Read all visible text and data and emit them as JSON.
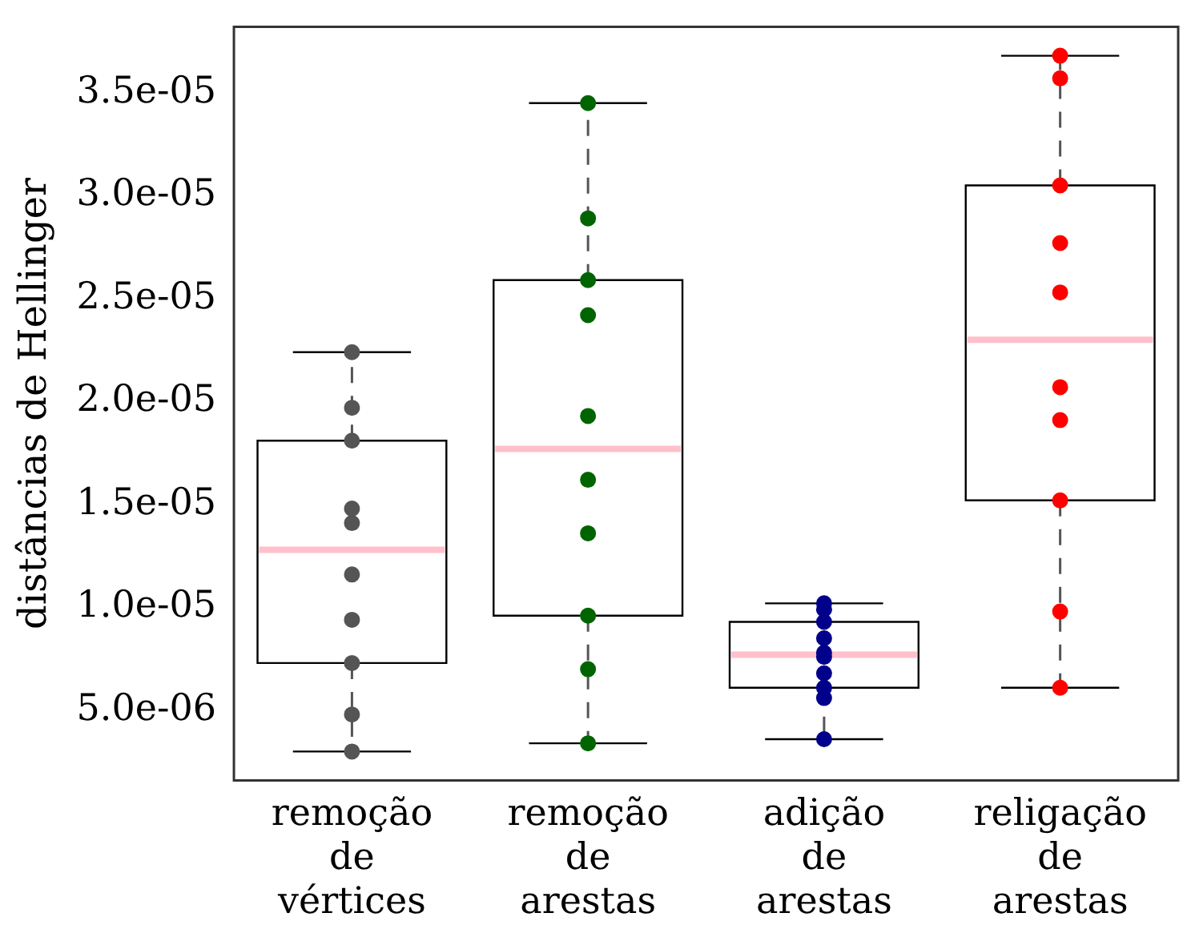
{
  "chart_data": {
    "type": "box",
    "ylabel": "distâncias de Hellinger",
    "categories": [
      "remoção de vértices",
      "remoção de arestas",
      "adição de arestas",
      "religação de arestas"
    ],
    "ylim": [
      1.6e-06,
      3.82e-05
    ],
    "yticks": [
      {
        "value": 5e-06,
        "label": "5.0e-06"
      },
      {
        "value": 1e-05,
        "label": "1.0e-05"
      },
      {
        "value": 1.5e-05,
        "label": "1.5e-05"
      },
      {
        "value": 2e-05,
        "label": "2.0e-05"
      },
      {
        "value": 2.5e-05,
        "label": "2.5e-05"
      },
      {
        "value": 3e-05,
        "label": "3.0e-05"
      },
      {
        "value": 3.5e-05,
        "label": "3.5e-05"
      }
    ],
    "grid": false,
    "legend": false,
    "boxes": [
      {
        "low": 3e-06,
        "q1": 7.3e-06,
        "median": 1.28e-05,
        "q3": 1.81e-05,
        "high": 2.24e-05
      },
      {
        "low": 3.4e-06,
        "q1": 9.6e-06,
        "median": 1.77e-05,
        "q3": 2.59e-05,
        "high": 3.45e-05
      },
      {
        "low": 3.6e-06,
        "q1": 6.1e-06,
        "median": 7.7e-06,
        "q3": 9.3e-06,
        "high": 1.02e-05
      },
      {
        "low": 6.1e-06,
        "q1": 1.52e-05,
        "median": 2.3e-05,
        "q3": 3.05e-05,
        "high": 3.68e-05
      }
    ],
    "series": [
      {
        "type": "scatter",
        "color": "#555555",
        "x": [
          "remoção de vértices",
          "remoção de vértices",
          "remoção de vértices",
          "remoção de vértices",
          "remoção de vértices",
          "remoção de vértices",
          "remoção de vértices",
          "remoção de vértices",
          "remoção de vértices",
          "remoção de vértices"
        ],
        "values": [
          2.24e-05,
          1.97e-05,
          1.81e-05,
          1.48e-05,
          1.41e-05,
          1.16e-05,
          9.4e-06,
          7.3e-06,
          4.8e-06,
          3e-06
        ]
      },
      {
        "type": "scatter",
        "color": "#006400",
        "x": [
          "remoção de arestas",
          "remoção de arestas",
          "remoção de arestas",
          "remoção de arestas",
          "remoção de arestas",
          "remoção de arestas",
          "remoção de arestas",
          "remoção de arestas",
          "remoção de arestas",
          "remoção de arestas"
        ],
        "values": [
          3.45e-05,
          2.89e-05,
          2.59e-05,
          2.42e-05,
          1.93e-05,
          1.62e-05,
          1.36e-05,
          9.6e-06,
          7e-06,
          3.4e-06
        ]
      },
      {
        "type": "scatter",
        "color": "#00008b",
        "x": [
          "adição de arestas",
          "adição de arestas",
          "adição de arestas",
          "adição de arestas",
          "adição de arestas",
          "adição de arestas",
          "adição de arestas",
          "adição de arestas",
          "adição de arestas",
          "adição de arestas"
        ],
        "values": [
          1.02e-05,
          9.9e-06,
          9.3e-06,
          8.5e-06,
          7.8e-06,
          7.6e-06,
          6.8e-06,
          6.1e-06,
          5.6e-06,
          3.6e-06
        ]
      },
      {
        "type": "scatter",
        "color": "#ff0000",
        "x": [
          "religação de arestas",
          "religação de arestas",
          "religação de arestas",
          "religação de arestas",
          "religação de arestas",
          "religação de arestas",
          "religação de arestas",
          "religação de arestas",
          "religação de arestas",
          "religação de arestas"
        ],
        "values": [
          3.68e-05,
          3.57e-05,
          3.05e-05,
          2.77e-05,
          2.53e-05,
          2.07e-05,
          1.91e-05,
          1.52e-05,
          9.8e-06,
          6.1e-06
        ]
      }
    ]
  }
}
